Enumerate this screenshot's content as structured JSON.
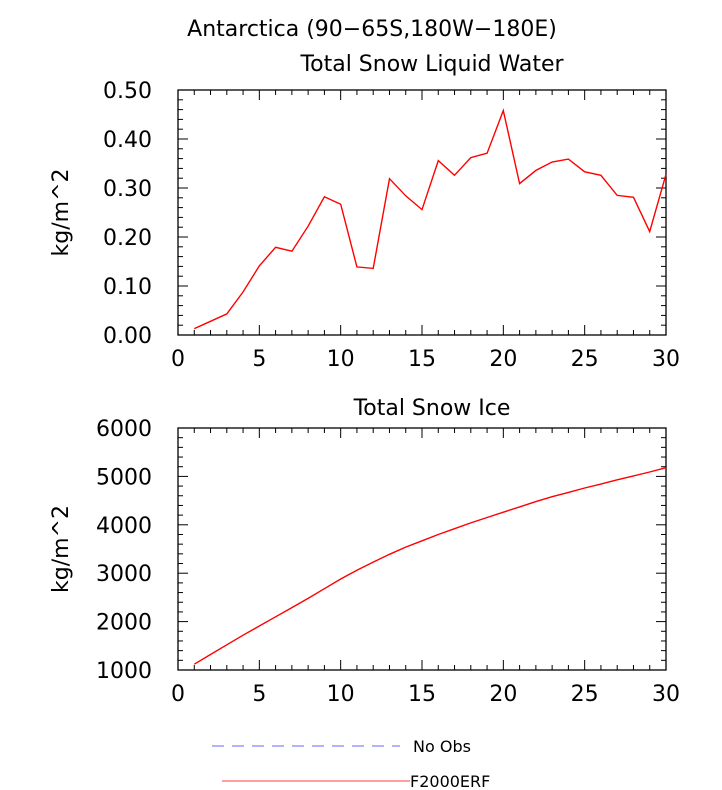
{
  "title": "Antarctica (90−65S,180W−180E)",
  "legend": [
    {
      "label": "No Obs",
      "color": "#9999ff",
      "style": "dashed"
    },
    {
      "label": "F2000ERF",
      "color": "#ff8080",
      "style": "solid"
    }
  ],
  "chart_data": [
    {
      "type": "line",
      "title": "Total Snow Liquid Water",
      "xlabel": "",
      "ylabel": "kg/m^2",
      "xlim": [
        0,
        30
      ],
      "ylim": [
        0.0,
        0.5
      ],
      "xticks": [
        0,
        5,
        10,
        15,
        20,
        25,
        30
      ],
      "yticks": [
        0.0,
        0.1,
        0.2,
        0.3,
        0.4,
        0.5
      ],
      "ytick_labels": [
        "0.00",
        "0.10",
        "0.20",
        "0.30",
        "0.40",
        "0.50"
      ],
      "series": [
        {
          "name": "F2000ERF",
          "color": "#ff0000",
          "x": [
            1,
            2,
            3,
            4,
            5,
            6,
            7,
            8,
            9,
            10,
            11,
            12,
            13,
            14,
            15,
            16,
            17,
            18,
            19,
            20,
            21,
            22,
            23,
            24,
            25,
            26,
            27,
            28,
            29,
            30
          ],
          "y": [
            0.013,
            0.028,
            0.043,
            0.088,
            0.141,
            0.179,
            0.171,
            0.222,
            0.282,
            0.267,
            0.139,
            0.136,
            0.319,
            0.284,
            0.256,
            0.356,
            0.326,
            0.362,
            0.371,
            0.458,
            0.309,
            0.336,
            0.353,
            0.359,
            0.333,
            0.326,
            0.285,
            0.281,
            0.211,
            0.328
          ]
        }
      ]
    },
    {
      "type": "line",
      "title": "Total Snow Ice",
      "xlabel": "",
      "ylabel": "kg/m^2",
      "xlim": [
        0,
        30
      ],
      "ylim": [
        1000,
        6000
      ],
      "xticks": [
        0,
        5,
        10,
        15,
        20,
        25,
        30
      ],
      "yticks": [
        1000,
        2000,
        3000,
        4000,
        5000,
        6000
      ],
      "ytick_labels": [
        "1000",
        "2000",
        "3000",
        "4000",
        "5000",
        "6000"
      ],
      "series": [
        {
          "name": "F2000ERF",
          "color": "#ff0000",
          "x": [
            1,
            2,
            3,
            4,
            5,
            6,
            7,
            8,
            9,
            10,
            11,
            12,
            13,
            14,
            15,
            16,
            17,
            18,
            19,
            20,
            21,
            22,
            23,
            24,
            25,
            26,
            27,
            28,
            29,
            30
          ],
          "y": [
            1120,
            1320,
            1520,
            1720,
            1910,
            2100,
            2290,
            2480,
            2680,
            2880,
            3060,
            3230,
            3390,
            3540,
            3670,
            3800,
            3920,
            4040,
            4150,
            4260,
            4370,
            4480,
            4580,
            4670,
            4760,
            4840,
            4930,
            5010,
            5090,
            5180
          ]
        }
      ]
    }
  ]
}
